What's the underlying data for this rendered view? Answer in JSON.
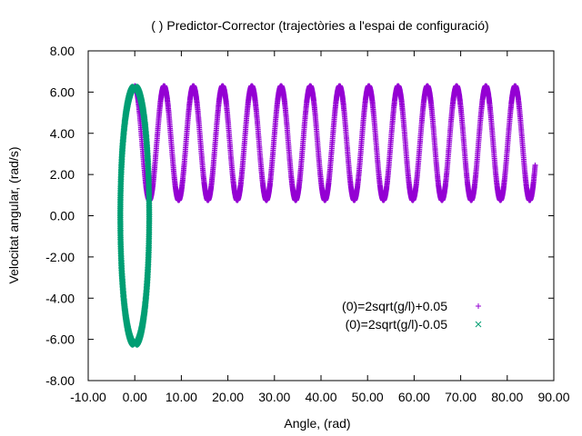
{
  "chart_data": {
    "type": "scatter",
    "title": "(  ) Predictor-Corrector (trajectòries a l'espai de configuració)",
    "xlabel": "Angle,    (rad)",
    "ylabel": "Velocitat angular,    (rad/s)",
    "xlim": [
      -10,
      90
    ],
    "ylim": [
      -8,
      8
    ],
    "x_ticks": [
      -10,
      0,
      10,
      20,
      30,
      40,
      50,
      60,
      70,
      80,
      90
    ],
    "x_tick_labels": [
      "-10.00",
      "0.00",
      "10.00",
      "20.00",
      "30.00",
      "40.00",
      "50.00",
      "60.00",
      "70.00",
      "80.00",
      "90.00"
    ],
    "y_ticks": [
      -8,
      -6,
      -4,
      -2,
      0,
      2,
      4,
      6,
      8
    ],
    "y_tick_labels": [
      "-8.00",
      "-6.00",
      "-4.00",
      "-2.00",
      "0.00",
      "2.00",
      "4.00",
      "6.00",
      "8.00"
    ],
    "grid": false,
    "legend_position": "lower-right",
    "series": [
      {
        "name": "(0)=2sqrt(g/l)+0.05",
        "marker": "+",
        "color": "#9400d3",
        "description_points": {
          "x_start": 0,
          "x_end": 86,
          "period_rad": 6.2832,
          "y_max": 6.3,
          "y_min": 0.75
        }
      },
      {
        "name": "(0)=2sqrt(g/l)-0.05",
        "marker": "x",
        "color": "#009e73",
        "description_points": {
          "theta_max": 3.1,
          "y_max": 6.25,
          "y_min": -6.25
        }
      }
    ]
  }
}
